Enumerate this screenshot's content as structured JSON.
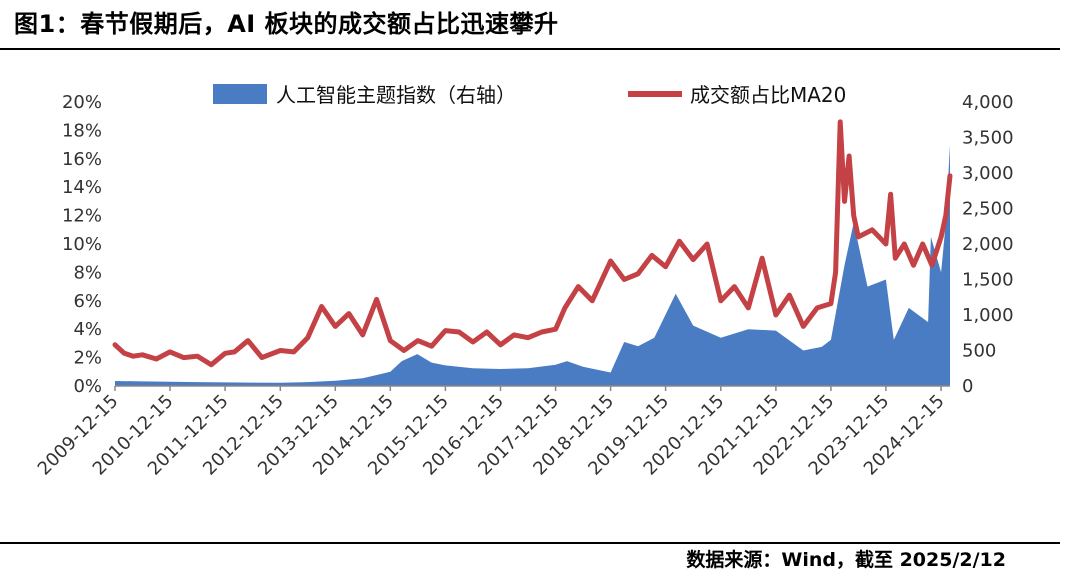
{
  "header": {
    "title": "图1：春节假期后，AI 板块的成交额占比迅速攀升"
  },
  "footer": {
    "source": "数据来源：Wind，截至 2025/2/12"
  },
  "colors": {
    "area": "#4a7cc4",
    "line": "#c44145"
  },
  "chart_data": {
    "type": "area+line",
    "legend": [
      {
        "key": "area",
        "label": "人工智能主题指数（右轴）"
      },
      {
        "key": "line",
        "label": "成交额占比MA20"
      }
    ],
    "legend_position": "top-center",
    "grid": false,
    "x_start": "2009-12-15",
    "x_end": "2025-02-12",
    "x_tick_labels": [
      "2009-12-15",
      "2010-12-15",
      "2011-12-15",
      "2012-12-15",
      "2013-12-15",
      "2014-12-15",
      "2015-12-15",
      "2016-12-15",
      "2017-12-15",
      "2018-12-15",
      "2019-12-15",
      "2020-12-15",
      "2021-12-15",
      "2022-12-15",
      "2023-12-15",
      "2024-12-15"
    ],
    "left_axis": {
      "min": 0,
      "max": 20,
      "tick_labels": [
        "0%",
        "2%",
        "4%",
        "6%",
        "8%",
        "10%",
        "12%",
        "14%",
        "16%",
        "18%",
        "20%"
      ]
    },
    "right_axis": {
      "min": 0,
      "max": 4000,
      "tick_labels": [
        "0",
        "500",
        "1,000",
        "1,500",
        "2,000",
        "2,500",
        "3,000",
        "3,500",
        "4,000"
      ]
    },
    "series": [
      {
        "name": "人工智能主题指数（右轴）",
        "axis": "right",
        "type": "area",
        "x": [
          "2009-12-15",
          "2010-06-15",
          "2010-12-15",
          "2011-06-15",
          "2011-12-15",
          "2012-06-15",
          "2012-12-15",
          "2013-06-15",
          "2013-12-15",
          "2014-06-15",
          "2014-12-15",
          "2015-03-01",
          "2015-06-12",
          "2015-09-15",
          "2015-12-15",
          "2016-06-15",
          "2016-12-15",
          "2017-06-15",
          "2017-12-15",
          "2018-03-01",
          "2018-06-15",
          "2018-12-15",
          "2019-03-15",
          "2019-06-15",
          "2019-10-01",
          "2020-02-20",
          "2020-06-15",
          "2020-12-15",
          "2021-06-15",
          "2021-12-15",
          "2022-06-15",
          "2022-10-15",
          "2022-12-15",
          "2023-03-15",
          "2023-05-15",
          "2023-08-15",
          "2023-12-15",
          "2024-02-05",
          "2024-05-15",
          "2024-09-20",
          "2024-10-08",
          "2024-12-15",
          "2025-01-15",
          "2025-02-12"
        ],
        "values": [
          70,
          65,
          60,
          55,
          50,
          48,
          45,
          55,
          75,
          110,
          200,
          350,
          450,
          330,
          290,
          250,
          240,
          250,
          300,
          350,
          270,
          190,
          620,
          560,
          680,
          1300,
          850,
          680,
          800,
          780,
          500,
          550,
          650,
          1700,
          2300,
          1400,
          1500,
          650,
          1100,
          900,
          2100,
          1600,
          2300,
          3400
        ]
      },
      {
        "name": "成交额占比MA20",
        "axis": "left",
        "type": "line",
        "x": [
          "2009-12-15",
          "2010-02-15",
          "2010-04-15",
          "2010-06-15",
          "2010-09-15",
          "2010-12-15",
          "2011-03-15",
          "2011-06-15",
          "2011-09-15",
          "2011-12-15",
          "2012-02-15",
          "2012-05-15",
          "2012-08-15",
          "2012-12-15",
          "2013-03-15",
          "2013-06-15",
          "2013-09-15",
          "2013-12-15",
          "2014-03-15",
          "2014-06-15",
          "2014-09-15",
          "2014-12-15",
          "2015-03-15",
          "2015-06-15",
          "2015-09-15",
          "2015-12-15",
          "2016-03-15",
          "2016-06-15",
          "2016-09-15",
          "2016-12-15",
          "2017-03-15",
          "2017-06-15",
          "2017-09-15",
          "2017-12-15",
          "2018-02-15",
          "2018-05-15",
          "2018-08-15",
          "2018-12-15",
          "2019-03-15",
          "2019-06-15",
          "2019-09-15",
          "2019-12-15",
          "2020-03-15",
          "2020-06-15",
          "2020-09-15",
          "2020-12-15",
          "2021-03-15",
          "2021-06-15",
          "2021-09-15",
          "2021-12-15",
          "2022-03-15",
          "2022-06-15",
          "2022-09-15",
          "2022-12-15",
          "2023-01-15",
          "2023-02-15",
          "2023-03-15",
          "2023-04-15",
          "2023-05-15",
          "2023-06-15",
          "2023-09-15",
          "2023-12-15",
          "2024-01-15",
          "2024-02-15",
          "2024-04-15",
          "2024-06-15",
          "2024-08-15",
          "2024-10-15",
          "2024-12-15",
          "2025-01-15",
          "2025-02-12"
        ],
        "values": [
          2.9,
          2.3,
          2.1,
          2.2,
          1.9,
          2.4,
          2.0,
          2.1,
          1.5,
          2.3,
          2.4,
          3.2,
          2.0,
          2.5,
          2.4,
          3.4,
          5.6,
          4.2,
          5.1,
          3.6,
          6.1,
          3.2,
          2.5,
          3.2,
          2.8,
          3.9,
          3.8,
          3.1,
          3.8,
          2.9,
          3.6,
          3.4,
          3.8,
          4.0,
          5.5,
          7.0,
          6.0,
          8.8,
          7.5,
          7.9,
          9.2,
          8.4,
          10.2,
          8.9,
          10.0,
          6.0,
          7.0,
          5.5,
          9.0,
          5.0,
          6.4,
          4.2,
          5.5,
          5.8,
          8.0,
          18.6,
          13.0,
          16.2,
          12.0,
          10.5,
          11.0,
          10.0,
          13.5,
          9.0,
          10.0,
          8.5,
          10.0,
          8.5,
          10.5,
          12.0,
          14.8
        ]
      }
    ]
  }
}
